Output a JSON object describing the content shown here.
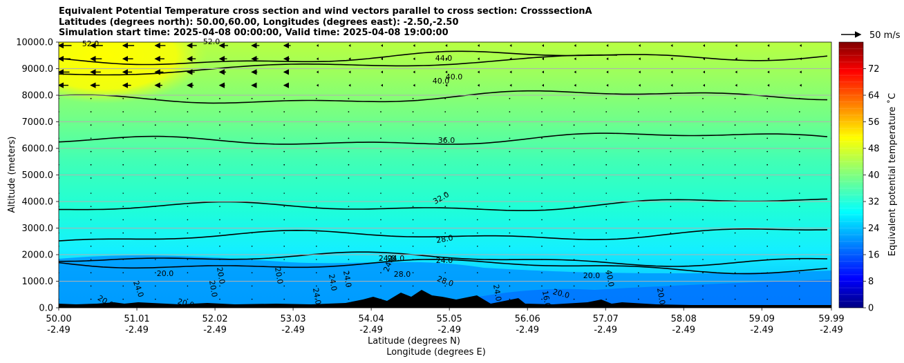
{
  "chart_data": {
    "type": "heatmap",
    "title_lines": [
      "Equivalent Potential Temperature cross section and wind vectors parallel to cross section: CrosssectionA",
      "Latitudes (degrees north): 50.00,60.00, Longitudes (degrees east): -2.50,-2.50",
      "Simulation start time: 2025-04-08 00:00:00, Valid time: 2025-04-08 19:00:00"
    ],
    "ylabel": "Altitude (meters)",
    "xlabel_lat": "Latitude (degrees N)",
    "xlabel_lon": "Longitude (degrees E)",
    "ylim": [
      0,
      10000
    ],
    "xlim": [
      50.0,
      59.99
    ],
    "y_ticks": [
      "0.0",
      "1000.0",
      "2000.0",
      "3000.0",
      "4000.0",
      "5000.0",
      "6000.0",
      "7000.0",
      "8000.0",
      "9000.0",
      "10000.0"
    ],
    "x_ticks": [
      {
        "lat": "50.00",
        "lon": "-2.49"
      },
      {
        "lat": "51.01",
        "lon": "-2.49"
      },
      {
        "lat": "52.02",
        "lon": "-2.49"
      },
      {
        "lat": "53.03",
        "lon": "-2.49"
      },
      {
        "lat": "54.04",
        "lon": "-2.49"
      },
      {
        "lat": "55.05",
        "lon": "-2.49"
      },
      {
        "lat": "56.06",
        "lon": "-2.49"
      },
      {
        "lat": "57.07",
        "lon": "-2.49"
      },
      {
        "lat": "58.08",
        "lon": "-2.49"
      },
      {
        "lat": "59.09",
        "lon": "-2.49"
      },
      {
        "lat": "59.99",
        "lon": "-2.49"
      }
    ],
    "horizontal_grid": true,
    "colorbar": {
      "label": "Equivalent potential temperature ˚C",
      "range": [
        0,
        80
      ],
      "ticks": [
        "0",
        "8",
        "16",
        "24",
        "32",
        "40",
        "48",
        "56",
        "64",
        "72"
      ],
      "colormap": "jet",
      "levels": 40
    },
    "wind_reference": {
      "label": "50 m/s"
    },
    "theta_e_profile": {
      "altitude_m": [
        0,
        1000,
        2000,
        3000,
        4000,
        5000,
        6000,
        7000,
        8000,
        9000,
        10000
      ],
      "value_C": [
        23,
        22,
        25,
        28,
        32,
        34,
        35,
        37,
        39,
        42,
        45
      ]
    },
    "contours": [
      {
        "level": "20.0",
        "altitude_m": 1700
      },
      {
        "level": "24.0",
        "altitude_m": 1950
      },
      {
        "level": "28.0",
        "altitude_m": 2600
      },
      {
        "level": "32.0",
        "altitude_m": 3700
      },
      {
        "level": "36.0",
        "altitude_m": 6200
      },
      {
        "level": "40.0",
        "altitude_m": 7800
      },
      {
        "level": "44.0",
        "altitude_m": 9300
      }
    ],
    "contour_labels": [
      "52.0",
      "52.0",
      "44.0",
      "40.0",
      "40.0",
      "36.0",
      "32.0",
      "28.0",
      "24.0",
      "24.0",
      "24.0",
      "20.0",
      "20.0",
      "20.0",
      "20.0",
      "20.0",
      "20.0",
      "24.0",
      "24.0",
      "24.0",
      "24.0",
      "28.0",
      "28.0",
      "20.0",
      "16.0",
      "20.0",
      "20.0"
    ],
    "annotations": [
      "40.0",
      "24.0",
      "24.0"
    ]
  }
}
